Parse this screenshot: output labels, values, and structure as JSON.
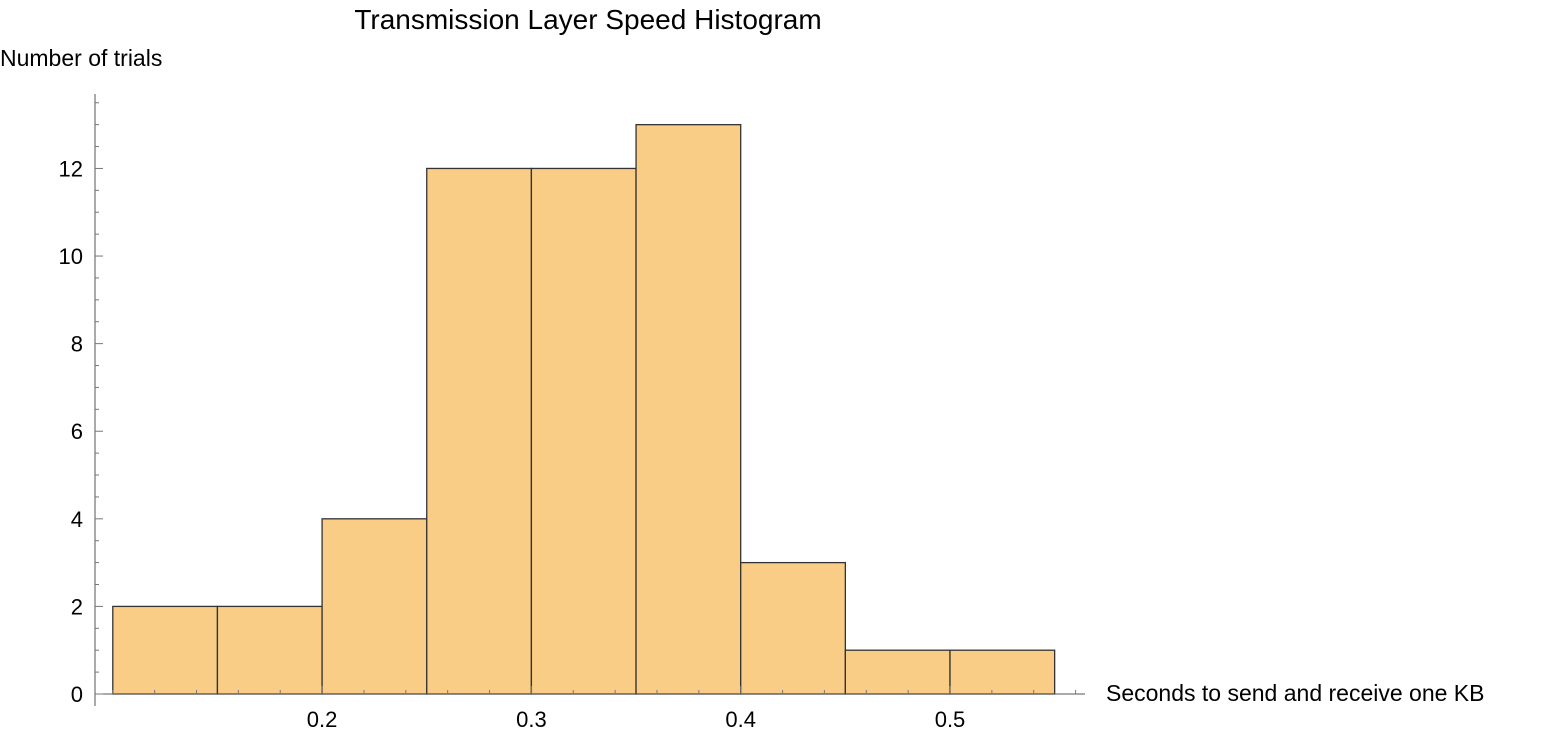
{
  "chart_data": {
    "type": "bar",
    "title": "Transmission Layer Speed Histogram",
    "xlabel": "Seconds to send and receive one KB",
    "ylabel": "Number of trials",
    "bins": [
      {
        "start": 0.1,
        "end": 0.15,
        "count": 2
      },
      {
        "start": 0.15,
        "end": 0.2,
        "count": 2
      },
      {
        "start": 0.2,
        "end": 0.25,
        "count": 4
      },
      {
        "start": 0.25,
        "end": 0.3,
        "count": 12
      },
      {
        "start": 0.3,
        "end": 0.35,
        "count": 12
      },
      {
        "start": 0.35,
        "end": 0.4,
        "count": 13
      },
      {
        "start": 0.4,
        "end": 0.45,
        "count": 3
      },
      {
        "start": 0.45,
        "end": 0.5,
        "count": 1
      },
      {
        "start": 0.5,
        "end": 0.55,
        "count": 1
      }
    ],
    "xlim": [
      0.0915,
      0.5645
    ],
    "ylim": [
      0,
      13.7
    ],
    "xticks": [
      0.2,
      0.3,
      0.4,
      0.5
    ],
    "xtick_labels": [
      "0.2",
      "0.3",
      "0.4",
      "0.5"
    ],
    "yticks": [
      0,
      2,
      4,
      6,
      8,
      10,
      12
    ],
    "ytick_labels": [
      "0",
      "2",
      "4",
      "6",
      "8",
      "10",
      "12"
    ],
    "grid": false,
    "bar_color": "#f9cd85",
    "edge_color": "#333333"
  }
}
